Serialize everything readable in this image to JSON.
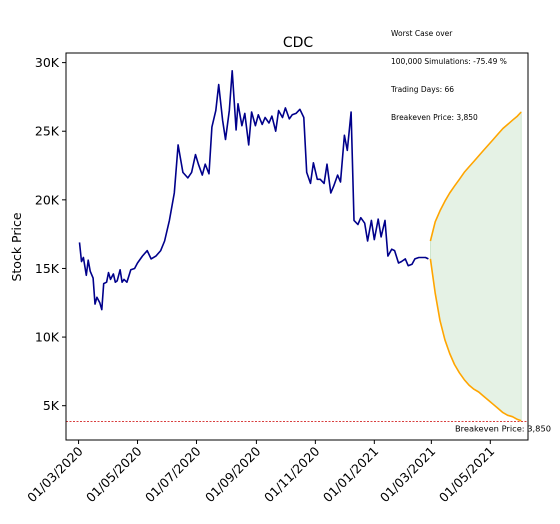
{
  "annotation": {
    "line1": "Worst Case over",
    "line2": "100,000 Simulations: -75.49 %",
    "line3": "Trading Days: 66",
    "line4": "Breakeven Price: 3,850"
  },
  "colors": {
    "history": "#00008b",
    "projection_bounds": "#ffa500",
    "projection_fill": "#e5f2e5",
    "breakeven_line": "#cc0000"
  },
  "chart_data": {
    "type": "line",
    "title": "CDC",
    "xlabel": "",
    "ylabel": "Stock Price",
    "x_ticks": [
      "01/03/2020",
      "01/05/2020",
      "01/07/2020",
      "01/09/2020",
      "01/11/2020",
      "01/01/2021",
      "01/03/2021",
      "01/05/2021"
    ],
    "y_ticks": [
      "5K",
      "10K",
      "15K",
      "20K",
      "25K",
      "30K"
    ],
    "y_tick_values": [
      5000,
      10000,
      15000,
      20000,
      25000,
      30000
    ],
    "xlim": [
      "2020-02-17",
      "2021-06-09"
    ],
    "ylim": [
      2500,
      30700
    ],
    "grid": false,
    "series": [
      {
        "role": "history",
        "x": [
          "2020-03-02",
          "2020-03-04",
          "2020-03-06",
          "2020-03-09",
          "2020-03-11",
          "2020-03-13",
          "2020-03-16",
          "2020-03-18",
          "2020-03-20",
          "2020-03-23",
          "2020-03-25",
          "2020-03-27",
          "2020-03-30",
          "2020-04-01",
          "2020-04-03",
          "2020-04-06",
          "2020-04-08",
          "2020-04-10",
          "2020-04-13",
          "2020-04-15",
          "2020-04-17",
          "2020-04-20",
          "2020-04-24",
          "2020-04-28",
          "2020-05-01",
          "2020-05-06",
          "2020-05-11",
          "2020-05-15",
          "2020-05-20",
          "2020-05-25",
          "2020-05-29",
          "2020-06-03",
          "2020-06-08",
          "2020-06-12",
          "2020-06-17",
          "2020-06-22",
          "2020-06-26",
          "2020-06-30",
          "2020-07-03",
          "2020-07-07",
          "2020-07-10",
          "2020-07-14",
          "2020-07-17",
          "2020-07-21",
          "2020-07-24",
          "2020-07-28",
          "2020-07-31",
          "2020-08-04",
          "2020-08-07",
          "2020-08-11",
          "2020-08-13",
          "2020-08-17",
          "2020-08-20",
          "2020-08-24",
          "2020-08-27",
          "2020-08-31",
          "2020-09-03",
          "2020-09-07",
          "2020-09-10",
          "2020-09-14",
          "2020-09-17",
          "2020-09-21",
          "2020-09-24",
          "2020-09-28",
          "2020-10-01",
          "2020-10-05",
          "2020-10-08",
          "2020-10-12",
          "2020-10-16",
          "2020-10-20",
          "2020-10-23",
          "2020-10-27",
          "2020-10-30",
          "2020-11-03",
          "2020-11-06",
          "2020-11-10",
          "2020-11-13",
          "2020-11-17",
          "2020-11-20",
          "2020-11-24",
          "2020-11-27",
          "2020-12-01",
          "2020-12-04",
          "2020-12-08",
          "2020-12-11",
          "2020-12-15",
          "2020-12-18",
          "2020-12-22",
          "2020-12-25",
          "2020-12-29",
          "2021-01-01",
          "2021-01-05",
          "2021-01-08",
          "2021-01-12",
          "2021-01-15",
          "2021-01-19",
          "2021-01-22",
          "2021-01-26",
          "2021-01-29",
          "2021-02-02",
          "2021-02-05",
          "2021-02-09",
          "2021-02-12",
          "2021-02-16",
          "2021-02-19",
          "2021-02-23",
          "2021-02-26"
        ],
        "y": [
          16900,
          15500,
          15800,
          14500,
          15600,
          14800,
          14300,
          12400,
          12900,
          12500,
          12000,
          13900,
          14000,
          14700,
          14200,
          14600,
          14000,
          14100,
          14900,
          14000,
          14200,
          14000,
          14900,
          15000,
          15400,
          15900,
          16300,
          15700,
          15900,
          16300,
          17000,
          18500,
          20500,
          24000,
          22000,
          21600,
          22000,
          23300,
          22600,
          21800,
          22600,
          21900,
          25300,
          26500,
          28400,
          25800,
          24400,
          26500,
          29400,
          25100,
          27000,
          25400,
          26300,
          24000,
          26400,
          25400,
          26200,
          25500,
          26000,
          25600,
          26100,
          25000,
          26500,
          26000,
          26700,
          25900,
          26200,
          26300,
          26600,
          26000,
          22000,
          21200,
          22700,
          21500,
          21500,
          21200,
          22600,
          20500,
          21000,
          21800,
          21300,
          24700,
          23600,
          26400,
          18500,
          18200,
          18700,
          18300,
          17000,
          18500,
          17100,
          18600,
          17300,
          18500,
          15900,
          16400,
          16300,
          15400,
          15500,
          15700,
          15200,
          15300,
          15700,
          15800,
          15800,
          15800,
          15700
        ]
      },
      {
        "role": "projection-upper",
        "x": [
          "2021-02-28",
          "2021-03-05",
          "2021-03-10",
          "2021-03-15",
          "2021-03-20",
          "2021-03-25",
          "2021-03-30",
          "2021-04-04",
          "2021-04-09",
          "2021-04-14",
          "2021-04-19",
          "2021-04-24",
          "2021-04-29",
          "2021-05-04",
          "2021-05-09",
          "2021-05-14",
          "2021-05-19",
          "2021-05-24",
          "2021-05-29",
          "2021-06-02"
        ],
        "y": [
          17000,
          18400,
          19200,
          19900,
          20500,
          21000,
          21500,
          22000,
          22400,
          22800,
          23200,
          23600,
          24000,
          24400,
          24800,
          25200,
          25500,
          25800,
          26100,
          26400
        ]
      },
      {
        "role": "projection-lower",
        "x": [
          "2021-02-28",
          "2021-03-05",
          "2021-03-10",
          "2021-03-15",
          "2021-03-20",
          "2021-03-25",
          "2021-03-30",
          "2021-04-04",
          "2021-04-09",
          "2021-04-14",
          "2021-04-19",
          "2021-04-24",
          "2021-04-29",
          "2021-05-04",
          "2021-05-09",
          "2021-05-14",
          "2021-05-19",
          "2021-05-24",
          "2021-05-29",
          "2021-06-02"
        ],
        "y": [
          15700,
          13200,
          11200,
          9800,
          8800,
          8000,
          7400,
          6900,
          6500,
          6200,
          6000,
          5700,
          5400,
          5100,
          4800,
          4500,
          4300,
          4200,
          4000,
          3900
        ]
      }
    ],
    "horizontal_lines": [
      {
        "role": "breakeven",
        "y": 3850,
        "label": "Breakeven Price: 3,850"
      }
    ]
  }
}
